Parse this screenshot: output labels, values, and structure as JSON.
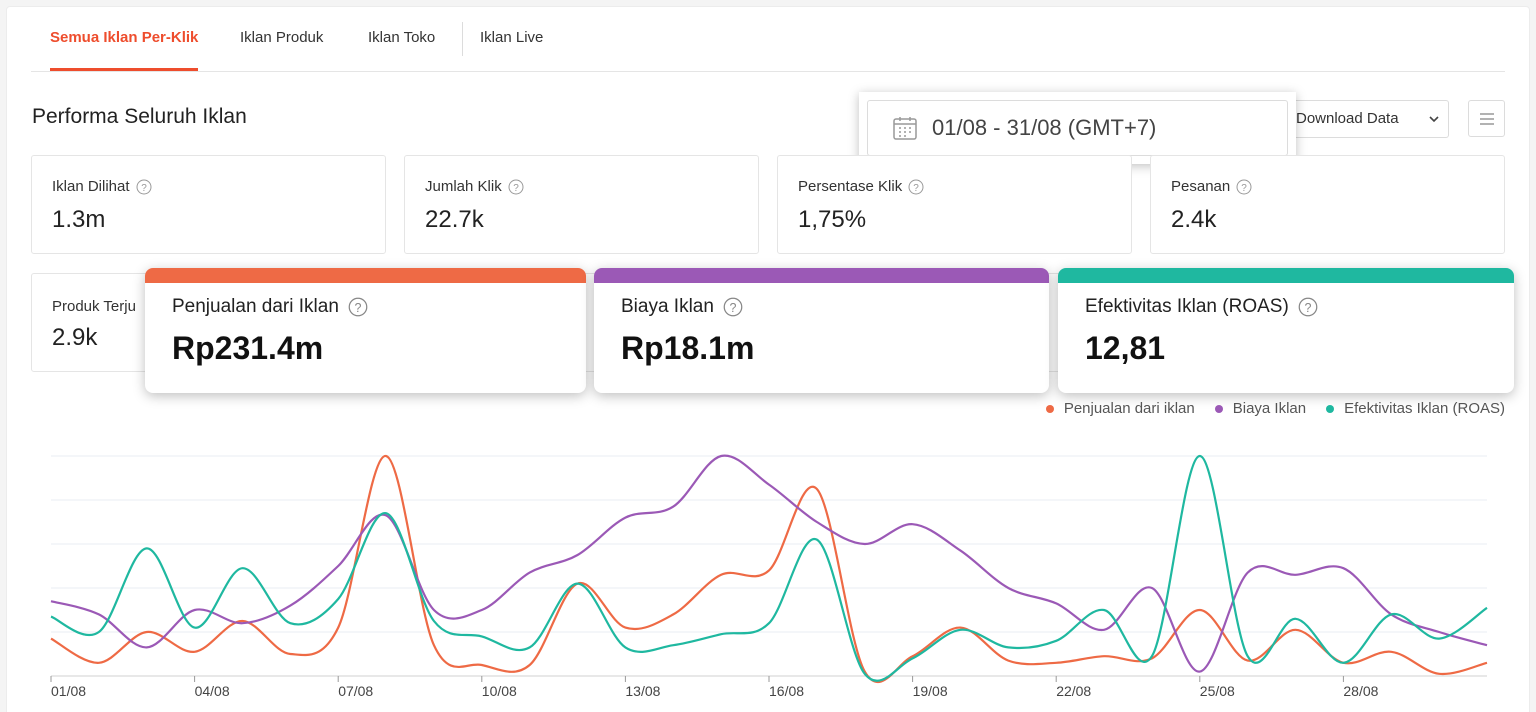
{
  "tabs": [
    {
      "label": "Semua Iklan Per-Klik",
      "active": true
    },
    {
      "label": "Iklan Produk",
      "active": false
    },
    {
      "label": "Iklan Toko",
      "active": false
    },
    {
      "label": "Iklan Live",
      "active": false
    }
  ],
  "page_title": "Performa Seluruh Iklan",
  "date_range": "01/08 - 31/08 (GMT+7)",
  "download_label": "Download Data",
  "metrics": [
    {
      "label": "Iklan Dilihat",
      "value": "1.3m"
    },
    {
      "label": "Jumlah Klik",
      "value": "22.7k"
    },
    {
      "label": "Persentase Klik",
      "value": "1,75%"
    },
    {
      "label": "Pesanan",
      "value": "2.4k"
    },
    {
      "label": "Produk Terju",
      "value": "2.9k"
    }
  ],
  "highlight_cards": [
    {
      "label": "Penjualan dari Iklan",
      "value": "Rp231.4m",
      "color": "#ee6a45"
    },
    {
      "label": "Biaya Iklan",
      "value": "Rp18.1m",
      "color": "#9b59b6"
    },
    {
      "label": "Efektivitas Iklan (ROAS)",
      "value": "12,81",
      "color": "#1fb8a0"
    }
  ],
  "colors": {
    "accent": "#ee4d2d",
    "sales": "#ee6a45",
    "cost": "#9b59b6",
    "roas": "#1fb8a0"
  },
  "icons": {
    "date": "calendar-icon",
    "download": "chevron-down-icon",
    "menu": "menu-icon",
    "help": "question-circle-icon"
  },
  "chart_data": {
    "type": "line",
    "x": [
      "01/08",
      "02/08",
      "03/08",
      "04/08",
      "05/08",
      "06/08",
      "07/08",
      "08/08",
      "09/08",
      "10/08",
      "11/08",
      "12/08",
      "13/08",
      "14/08",
      "15/08",
      "16/08",
      "17/08",
      "18/08",
      "19/08",
      "20/08",
      "21/08",
      "22/08",
      "23/08",
      "24/08",
      "25/08",
      "26/08",
      "27/08",
      "28/08",
      "29/08",
      "30/08",
      "31/08"
    ],
    "xticks": [
      "01/08",
      "04/08",
      "07/08",
      "10/08",
      "13/08",
      "16/08",
      "19/08",
      "22/08",
      "25/08",
      "28/08"
    ],
    "ylim": [
      0,
      100
    ],
    "grid": true,
    "legend_position": "top-right",
    "series": [
      {
        "name": "Penjualan dari iklan",
        "color": "#ee6a45",
        "values": [
          17,
          6,
          20,
          11,
          25,
          10,
          22,
          100,
          14,
          5,
          5,
          42,
          22,
          28,
          46,
          48,
          85,
          2,
          9,
          22,
          7,
          6,
          9,
          8,
          30,
          7,
          21,
          6,
          11,
          1,
          6
        ]
      },
      {
        "name": "Biaya Iklan",
        "color": "#9b59b6",
        "values": [
          34,
          28,
          13,
          30,
          24,
          32,
          50,
          73,
          30,
          30,
          47,
          55,
          72,
          77,
          100,
          87,
          70,
          60,
          69,
          57,
          40,
          33,
          21,
          40,
          2,
          47,
          46,
          49,
          28,
          20,
          14
        ]
      },
      {
        "name": "Efektivitas Iklan (ROAS)",
        "color": "#1fb8a0",
        "values": [
          27,
          20,
          58,
          22,
          49,
          24,
          35,
          74,
          25,
          18,
          13,
          42,
          13,
          14,
          19,
          24,
          62,
          1,
          8,
          21,
          13,
          16,
          30,
          9,
          100,
          9,
          26,
          6,
          28,
          17,
          31
        ]
      }
    ]
  }
}
